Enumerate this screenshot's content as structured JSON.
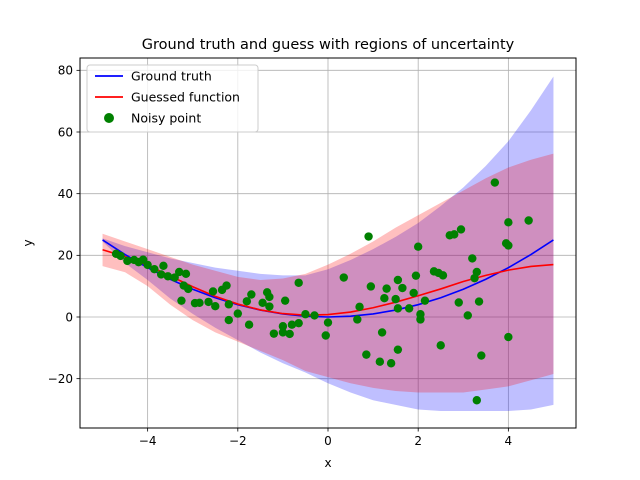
{
  "chart_data": {
    "type": "line",
    "title": "Ground truth and guess with regions of uncertainty",
    "xlabel": "x",
    "ylabel": "y",
    "xlim": [
      -5.5,
      5.5
    ],
    "ylim": [
      -36,
      84
    ],
    "xticks": [
      -4,
      -2,
      0,
      2,
      4
    ],
    "yticks": [
      -20,
      0,
      20,
      40,
      60,
      80
    ],
    "grid": true,
    "legend_position": "top-left",
    "series": [
      {
        "name": "Ground truth",
        "kind": "line",
        "color": "#0000ff",
        "x": [
          -5,
          -4.5,
          -4,
          -3.5,
          -3,
          -2.5,
          -2,
          -1.5,
          -1,
          -0.5,
          0,
          0.5,
          1,
          1.5,
          2,
          2.5,
          3,
          3.5,
          4,
          4.5,
          5
        ],
        "y": [
          25,
          20.25,
          16,
          12.25,
          9,
          6.25,
          4,
          2.25,
          1,
          0.25,
          0,
          0.25,
          1,
          2.25,
          4,
          6.25,
          9,
          12.25,
          16,
          20.25,
          25
        ]
      },
      {
        "name": "Guessed function",
        "kind": "line",
        "color": "#ff0000",
        "x": [
          -5,
          -4.5,
          -4,
          -3.5,
          -3,
          -2.5,
          -2,
          -1.5,
          -1,
          -0.5,
          0,
          0.5,
          1,
          1.5,
          2,
          2.5,
          3,
          3.5,
          4,
          4.5,
          5
        ],
        "y": [
          21.8,
          19.6,
          16.8,
          13.3,
          9.8,
          6.7,
          4.2,
          2.3,
          1.1,
          0.6,
          0.8,
          1.6,
          3,
          4.8,
          6.9,
          9.1,
          11.5,
          13.5,
          15.2,
          16.4,
          17
        ]
      },
      {
        "name": "Noisy point",
        "kind": "scatter",
        "color": "#008000",
        "points": [
          [
            -4.7,
            20.5
          ],
          [
            -4.6,
            19.8
          ],
          [
            -4.45,
            18.2
          ],
          [
            -4.3,
            18.5
          ],
          [
            -4.2,
            17.8
          ],
          [
            -4.1,
            18.6
          ],
          [
            -4.0,
            16.9
          ],
          [
            -3.85,
            15.5
          ],
          [
            -3.7,
            13.8
          ],
          [
            -3.65,
            16.6
          ],
          [
            -3.55,
            13.2
          ],
          [
            -3.4,
            12.8
          ],
          [
            -3.3,
            14.6
          ],
          [
            -3.25,
            5.3
          ],
          [
            -3.2,
            10.2
          ],
          [
            -3.15,
            14.0
          ],
          [
            -3.1,
            9.1
          ],
          [
            -2.95,
            4.5
          ],
          [
            -2.85,
            4.6
          ],
          [
            -2.65,
            4.9
          ],
          [
            -2.55,
            8.3
          ],
          [
            -2.5,
            3.5
          ],
          [
            -2.35,
            8.8
          ],
          [
            -2.25,
            10.2
          ],
          [
            -2.2,
            4.1
          ],
          [
            -2.2,
            -1.0
          ],
          [
            -2.0,
            1.1
          ],
          [
            -1.8,
            5.1
          ],
          [
            -1.75,
            -2.5
          ],
          [
            -1.7,
            7.3
          ],
          [
            -1.45,
            4.6
          ],
          [
            -1.35,
            8.0
          ],
          [
            -1.3,
            3.4
          ],
          [
            -1.3,
            6.5
          ],
          [
            -1.2,
            -5.4
          ],
          [
            -1.0,
            -5.0
          ],
          [
            -1.0,
            -3.0
          ],
          [
            -0.95,
            5.3
          ],
          [
            -0.85,
            -5.5
          ],
          [
            -0.8,
            -2.5
          ],
          [
            -0.65,
            11.1
          ],
          [
            -0.65,
            -2.0
          ],
          [
            -0.5,
            0.9
          ],
          [
            -0.3,
            0.5
          ],
          [
            -0.05,
            -6.0
          ],
          [
            0.0,
            -1.8
          ],
          [
            0.35,
            12.8
          ],
          [
            0.65,
            -0.8
          ],
          [
            0.7,
            3.3
          ],
          [
            0.85,
            -12.2
          ],
          [
            0.9,
            26.1
          ],
          [
            0.95,
            9.9
          ],
          [
            1.15,
            -14.5
          ],
          [
            1.2,
            -5.0
          ],
          [
            1.25,
            6.1
          ],
          [
            1.3,
            9.2
          ],
          [
            1.4,
            -15.0
          ],
          [
            1.5,
            5.8
          ],
          [
            1.55,
            12.0
          ],
          [
            1.55,
            2.8
          ],
          [
            1.55,
            -10.6
          ],
          [
            1.65,
            9.4
          ],
          [
            1.8,
            2.8
          ],
          [
            1.9,
            7.8
          ],
          [
            1.95,
            13.4
          ],
          [
            2.0,
            22.8
          ],
          [
            2.05,
            -0.8
          ],
          [
            2.05,
            0.9
          ],
          [
            2.15,
            5.3
          ],
          [
            2.35,
            14.8
          ],
          [
            2.45,
            14.3
          ],
          [
            2.5,
            -9.2
          ],
          [
            2.55,
            13.5
          ],
          [
            2.7,
            26.5
          ],
          [
            2.8,
            26.8
          ],
          [
            2.9,
            4.7
          ],
          [
            2.95,
            28.4
          ],
          [
            3.1,
            0.5
          ],
          [
            3.2,
            19.0
          ],
          [
            3.25,
            12.6
          ],
          [
            3.3,
            14.6
          ],
          [
            3.3,
            -27.0
          ],
          [
            3.35,
            5.0
          ],
          [
            3.4,
            -12.5
          ],
          [
            3.7,
            43.6
          ],
          [
            3.95,
            23.9
          ],
          [
            4.0,
            23.2
          ],
          [
            4.0,
            30.7
          ],
          [
            4.0,
            -6.5
          ],
          [
            4.45,
            31.3
          ]
        ]
      }
    ],
    "bands": [
      {
        "color": "#0000ff",
        "x": [
          -5,
          -4.5,
          -4,
          -3.5,
          -3,
          -2.5,
          -2,
          -1.5,
          -1,
          -0.5,
          0,
          0.5,
          1,
          1.5,
          2,
          2.5,
          3,
          3.5,
          4,
          4.5,
          5
        ],
        "lower": [
          24.5,
          17.5,
          12,
          6,
          1,
          -3.5,
          -7.5,
          -11.5,
          -15,
          -18,
          -21.5,
          -24.5,
          -27,
          -28.5,
          -30,
          -30.5,
          -30.5,
          -30.5,
          -30.5,
          -30,
          -28.5
        ],
        "upper": [
          25.5,
          23,
          21,
          19,
          17.5,
          16,
          15,
          14,
          13.5,
          13.5,
          15.5,
          18.5,
          22,
          26,
          30.5,
          36,
          42,
          49,
          57,
          67,
          78
        ]
      },
      {
        "color": "#ff0000",
        "x": [
          -5,
          -4.5,
          -4,
          -3.5,
          -3,
          -2.5,
          -2,
          -1.5,
          -1,
          -0.5,
          0,
          0.5,
          1,
          1.5,
          2,
          2.5,
          3,
          3.5,
          4,
          4.5,
          5
        ],
        "lower": [
          16.5,
          14.5,
          10,
          4,
          -1,
          -5,
          -8,
          -11,
          -14,
          -17.5,
          -19.5,
          -21.5,
          -23,
          -24,
          -24.5,
          -24.5,
          -24.5,
          -23.5,
          -22.5,
          -20.5,
          -18.5
        ],
        "upper": [
          27,
          24.5,
          22,
          19.5,
          17,
          15,
          13,
          12,
          12.5,
          14,
          17,
          20.5,
          24.5,
          29,
          33,
          37,
          41,
          45,
          48.5,
          51,
          53
        ]
      }
    ]
  }
}
